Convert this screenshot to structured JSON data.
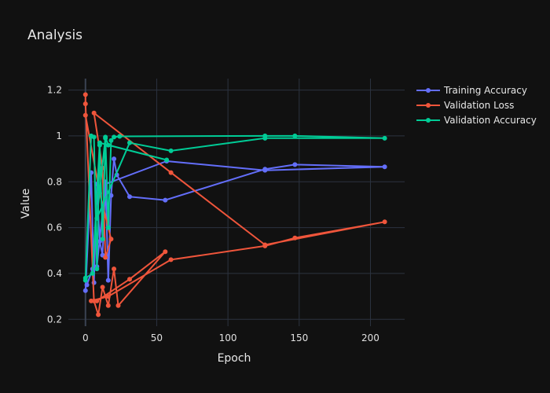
{
  "chart_data": {
    "type": "line",
    "title": "Analysis",
    "xlabel": "Epoch",
    "ylabel": "Value",
    "xlim": [
      -12,
      224
    ],
    "ylim": [
      0.17,
      1.25
    ],
    "xticks": [
      0,
      50,
      100,
      150,
      200
    ],
    "yticks": [
      0.2,
      0.4,
      0.6,
      0.8,
      1,
      1.2
    ],
    "xtick_labels": [
      "0",
      "50",
      "100",
      "150",
      "200"
    ],
    "ytick_labels": [
      "0.2",
      "0.4",
      "0.6",
      "0.8",
      "1",
      "1.2"
    ],
    "grid": true,
    "legend_position": "top-right",
    "series": [
      {
        "name": "Training Accuracy",
        "color": "#636efa",
        "points": [
          [
            0,
            0.325
          ],
          [
            4,
            0.84
          ],
          [
            6,
            0.36
          ],
          [
            8,
            0.79
          ],
          [
            10,
            0.54
          ],
          [
            12,
            0.48
          ],
          [
            14,
            0.8
          ],
          [
            16,
            0.37
          ],
          [
            18,
            0.74
          ],
          [
            20,
            0.9
          ],
          [
            22,
            0.83
          ],
          [
            31,
            0.735
          ],
          [
            56,
            0.72
          ],
          [
            126,
            0.855
          ],
          [
            147,
            0.875
          ],
          [
            210,
            0.865
          ],
          [
            126,
            0.85
          ],
          [
            57,
            0.89
          ],
          [
            14,
            0.79
          ],
          [
            8,
            0.43
          ],
          [
            5,
            0.42
          ],
          [
            1,
            0.35
          ]
        ]
      },
      {
        "name": "Validation Loss",
        "color": "#ef553b",
        "points": [
          [
            0,
            1.18
          ],
          [
            0,
            1.14
          ],
          [
            6,
            0.28
          ],
          [
            9,
            0.22
          ],
          [
            12,
            0.34
          ],
          [
            16,
            0.26
          ],
          [
            20,
            0.42
          ],
          [
            23,
            0.26
          ],
          [
            56,
            0.495
          ],
          [
            31,
            0.375
          ],
          [
            8,
            0.28
          ],
          [
            4,
            0.28
          ],
          [
            16,
            0.3
          ],
          [
            60,
            0.46
          ],
          [
            126,
            0.52
          ],
          [
            147,
            0.555
          ],
          [
            210,
            0.625
          ],
          [
            126,
            0.525
          ],
          [
            60,
            0.84
          ],
          [
            6,
            1.1
          ],
          [
            12,
            0.86
          ],
          [
            14,
            0.47
          ],
          [
            18,
            0.55
          ],
          [
            10,
            0.75
          ],
          [
            0,
            1.09
          ]
        ]
      },
      {
        "name": "Validation Accuracy",
        "color": "#00cc96",
        "points": [
          [
            0,
            0.37
          ],
          [
            4,
            1.0
          ],
          [
            6,
            0.995
          ],
          [
            8,
            0.42
          ],
          [
            10,
            0.96
          ],
          [
            12,
            0.55
          ],
          [
            14,
            0.99
          ],
          [
            16,
            0.6
          ],
          [
            18,
            0.98
          ],
          [
            20,
            0.995
          ],
          [
            24,
            0.998
          ],
          [
            126,
            1.0
          ],
          [
            147,
            1.0
          ],
          [
            210,
            0.99
          ],
          [
            126,
            0.99
          ],
          [
            60,
            0.935
          ],
          [
            31,
            0.97
          ],
          [
            8,
            0.64
          ],
          [
            14,
            0.995
          ],
          [
            16,
            0.96
          ],
          [
            57,
            0.895
          ],
          [
            10,
            0.97
          ],
          [
            5,
            0.4
          ],
          [
            0,
            0.38
          ]
        ]
      }
    ]
  }
}
